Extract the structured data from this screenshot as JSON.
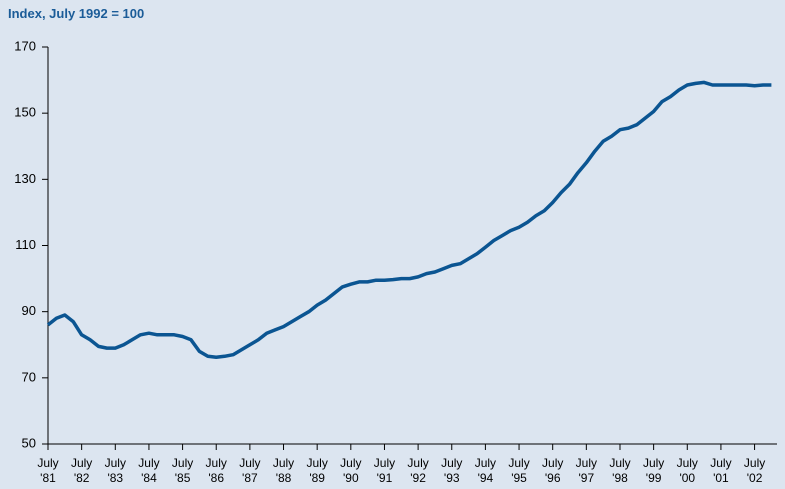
{
  "chart_data": {
    "type": "line",
    "title": "Index, July 1992 = 100",
    "x": [
      "1981-07",
      "1981-10",
      "1982-01",
      "1982-04",
      "1982-07",
      "1982-10",
      "1983-01",
      "1983-04",
      "1983-07",
      "1983-10",
      "1984-01",
      "1984-04",
      "1984-07",
      "1984-10",
      "1985-01",
      "1985-04",
      "1985-07",
      "1985-10",
      "1986-01",
      "1986-04",
      "1986-07",
      "1986-10",
      "1987-01",
      "1987-04",
      "1987-07",
      "1987-10",
      "1988-01",
      "1988-04",
      "1988-07",
      "1988-10",
      "1989-01",
      "1989-04",
      "1989-07",
      "1989-10",
      "1990-01",
      "1990-04",
      "1990-07",
      "1990-10",
      "1991-01",
      "1991-04",
      "1991-07",
      "1991-10",
      "1992-01",
      "1992-04",
      "1992-07",
      "1992-10",
      "1993-01",
      "1993-04",
      "1993-07",
      "1993-10",
      "1994-01",
      "1994-04",
      "1994-07",
      "1994-10",
      "1995-01",
      "1995-04",
      "1995-07",
      "1995-10",
      "1996-01",
      "1996-04",
      "1996-07",
      "1996-10",
      "1997-01",
      "1997-04",
      "1997-07",
      "1997-10",
      "1998-01",
      "1998-04",
      "1998-07",
      "1998-10",
      "1999-01",
      "1999-04",
      "1999-07",
      "1999-10",
      "2000-01",
      "2000-04",
      "2000-07",
      "2000-10",
      "2001-01",
      "2001-04",
      "2001-07",
      "2001-10",
      "2002-01",
      "2002-04",
      "2002-07",
      "2002-10",
      "2003-01"
    ],
    "series": [
      {
        "color": "#0b5592",
        "values": [
          86,
          88,
          89,
          87,
          83,
          81.5,
          79.5,
          79,
          79,
          80,
          81.5,
          83,
          83.5,
          83,
          83,
          83,
          82.5,
          81.5,
          78,
          76.5,
          76.2,
          76.5,
          77,
          78.5,
          80,
          81.5,
          83.5,
          84.5,
          85.5,
          87,
          88.5,
          90,
          92,
          93.5,
          95.5,
          97.5,
          98.3,
          99,
          99,
          99.5,
          99.5,
          99.7,
          100,
          100,
          100.5,
          101.5,
          102,
          103,
          104,
          104.5,
          106,
          107.5,
          109.5,
          111.5,
          113,
          114.5,
          115.5,
          117,
          119,
          120.5,
          123,
          126,
          128.5,
          132,
          135,
          138.5,
          141.5,
          143,
          145,
          145.5,
          146.5,
          148.5,
          150.5,
          153.5,
          155,
          157,
          158.5,
          159,
          159.3,
          158.5,
          158.5,
          158.5,
          158.5,
          158.5,
          158.3,
          158.5,
          158.5
        ]
      }
    ],
    "xlim": [
      "1981-07",
      "2003-03"
    ],
    "xticks": [
      {
        "value": "1981-07",
        "label": "July '81"
      },
      {
        "value": "1982-07",
        "label": "July '82"
      },
      {
        "value": "1983-07",
        "label": "July '83"
      },
      {
        "value": "1984-07",
        "label": "July '84"
      },
      {
        "value": "1985-07",
        "label": "July '85"
      },
      {
        "value": "1986-07",
        "label": "July '86"
      },
      {
        "value": "1987-07",
        "label": "July '87"
      },
      {
        "value": "1988-07",
        "label": "July '88"
      },
      {
        "value": "1989-07",
        "label": "July '89"
      },
      {
        "value": "1990-07",
        "label": "July '90"
      },
      {
        "value": "1991-07",
        "label": "July '91"
      },
      {
        "value": "1992-07",
        "label": "July '92"
      },
      {
        "value": "1993-07",
        "label": "July '93"
      },
      {
        "value": "1994-07",
        "label": "July '94"
      },
      {
        "value": "1995-07",
        "label": "July '95"
      },
      {
        "value": "1996-07",
        "label": "July '96"
      },
      {
        "value": "1997-07",
        "label": "July '97"
      },
      {
        "value": "1998-07",
        "label": "July '98"
      },
      {
        "value": "1999-07",
        "label": "July '99"
      },
      {
        "value": "2000-07",
        "label": "July '00"
      },
      {
        "value": "2001-07",
        "label": "July '01"
      },
      {
        "value": "2002-07",
        "label": "July '02"
      }
    ],
    "ylim": [
      50,
      170
    ],
    "yticks": [
      50,
      70,
      90,
      110,
      130,
      150,
      170
    ],
    "grid": false
  }
}
